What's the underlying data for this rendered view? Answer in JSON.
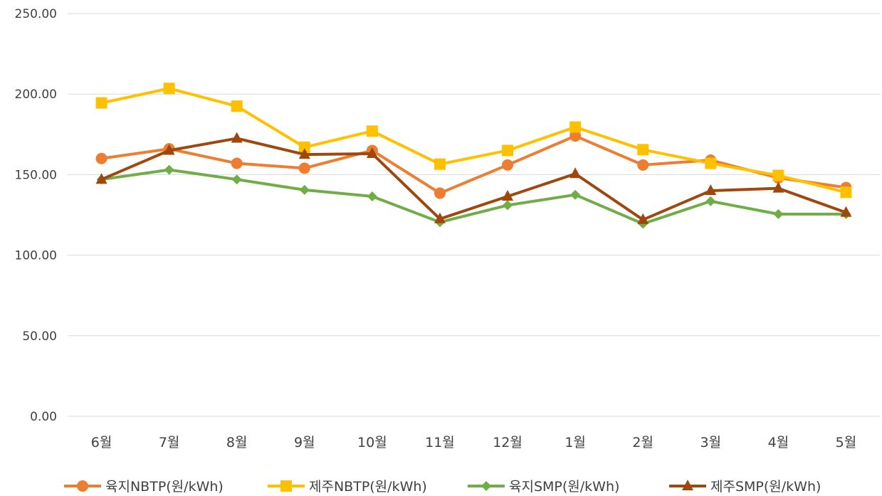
{
  "chart_data": {
    "type": "line",
    "title": "",
    "xlabel": "",
    "ylabel": "",
    "categories": [
      "6월",
      "7월",
      "8월",
      "9월",
      "10월",
      "11월",
      "12월",
      "1월",
      "2월",
      "3월",
      "4월",
      "5월"
    ],
    "y_ticks": [
      "0.00",
      "50.00",
      "100.00",
      "150.00",
      "200.00",
      "250.00"
    ],
    "ylim": [
      0,
      250
    ],
    "grid": true,
    "legend_position": "bottom",
    "series": [
      {
        "name": "육지NBTP(원/kWh)",
        "color": "#ed7d31",
        "marker": "circle",
        "values": [
          160,
          166,
          157,
          154,
          165,
          138.5,
          156,
          174,
          156,
          159,
          148,
          142
        ]
      },
      {
        "name": "제주NBTP(원/kWh)",
        "color": "#ffc000",
        "marker": "square",
        "values": [
          194.5,
          203.5,
          192.5,
          167,
          177,
          156.5,
          165,
          179.5,
          165.5,
          157,
          149.5,
          139
        ]
      },
      {
        "name": "육지SMP(원/kWh)",
        "color": "#70ad47",
        "marker": "diamond",
        "values": [
          147,
          153,
          147,
          140.5,
          136.5,
          120.5,
          131,
          137.5,
          119.5,
          133.5,
          125.5,
          125.5
        ]
      },
      {
        "name": "제주SMP(원/kWh)",
        "color": "#9e480e",
        "marker": "triangle",
        "values": [
          147,
          165,
          172.5,
          162.5,
          163,
          122.5,
          136.5,
          150.5,
          122,
          140,
          141.5,
          126.5
        ]
      }
    ]
  }
}
